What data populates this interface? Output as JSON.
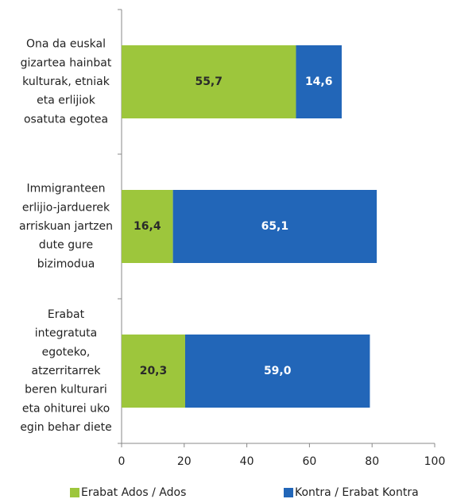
{
  "chart_data": {
    "type": "stacked-barh",
    "categories": [
      "Ona da euskal\ngizartea hainbat\nkulturak, etniak\neta erlijiok\nosatuta egotea",
      "Immigranteen\nerlijio-jarduerek\narriskuan jartzen\ndute gure\nbizimodua",
      "Erabat\nintegratuta\negoteko,\natzerritarrek\nberen kulturari\neta ohiturei uko\negin behar diete"
    ],
    "series": [
      {
        "name": "Erabat Ados / Ados",
        "color": "#9dc63c",
        "label_color": "#2a2a2a",
        "values": [
          55.7,
          16.4,
          20.3
        ],
        "value_labels": [
          "55,7",
          "16,4",
          "20,3"
        ]
      },
      {
        "name": "Kontra / Erabat Kontra",
        "color": "#2266b8",
        "label_color": "#ffffff",
        "values": [
          14.6,
          65.1,
          59.0
        ],
        "value_labels": [
          "14,6",
          "65,1",
          "59,0"
        ]
      }
    ],
    "xlim": [
      0,
      100
    ],
    "xticks": [
      0,
      20,
      40,
      60,
      80,
      100
    ]
  }
}
